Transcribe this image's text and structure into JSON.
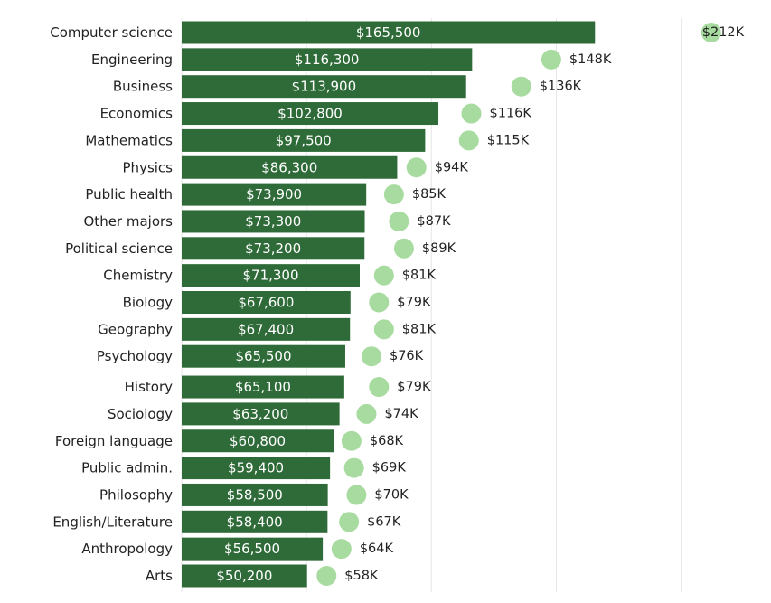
{
  "colors": {
    "bar": "#2f6b38",
    "dot": "#a8dba0",
    "grid": "#e6e6e6",
    "text": "#222222",
    "bar_text": "#ffffff"
  },
  "chart_data": {
    "type": "bar",
    "orientation": "horizontal",
    "grid": "vertical",
    "x_range": [
      0,
      220000
    ],
    "categories": [
      "Computer science",
      "Engineering",
      "Business",
      "Economics",
      "Mathematics",
      "Physics",
      "Public health",
      "Other majors",
      "Political science",
      "Chemistry",
      "Biology",
      "Geography",
      "Psychology",
      "History",
      "Sociology",
      "Foreign language",
      "Public admin.",
      "Philosophy",
      "English/Literature",
      "Anthropology",
      "Arts"
    ],
    "series": [
      {
        "values": [
          165500,
          116300,
          113900,
          102800,
          97500,
          86300,
          73900,
          73300,
          73200,
          71300,
          67600,
          67400,
          65500,
          65100,
          63200,
          60800,
          59400,
          58500,
          58400,
          56500,
          50200
        ],
        "labels": [
          "$165,500",
          "$116,300",
          "$113,900",
          "$102,800",
          "$97,500",
          "$86,300",
          "$73,900",
          "$73,300",
          "$73,200",
          "$71,300",
          "$67,600",
          "$67,400",
          "$65,500",
          "$65,100",
          "$63,200",
          "$60,800",
          "$59,400",
          "$58,500",
          "$58,400",
          "$56,500",
          "$50,200"
        ]
      },
      {
        "values": [
          212000,
          148000,
          136000,
          116000,
          115000,
          94000,
          85000,
          87000,
          89000,
          81000,
          79000,
          81000,
          76000,
          79000,
          74000,
          68000,
          69000,
          70000,
          67000,
          64000,
          58000
        ],
        "labels": [
          "$212K",
          "$148K",
          "$136K",
          "$116K",
          "$115K",
          "$94K",
          "$85K",
          "$87K",
          "$89K",
          "$81K",
          "$79K",
          "$81K",
          "$76K",
          "$79K",
          "$74K",
          "$68K",
          "$69K",
          "$70K",
          "$67K",
          "$64K",
          "$58K"
        ]
      }
    ]
  }
}
